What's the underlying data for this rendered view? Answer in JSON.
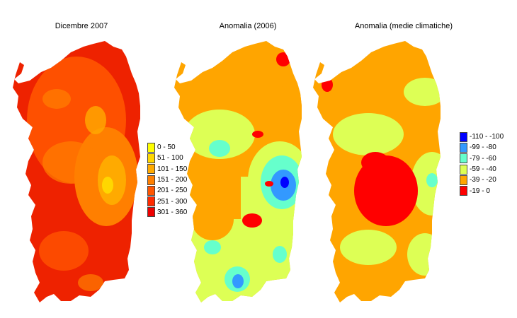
{
  "panels": [
    {
      "title": "Dicembre 2007"
    },
    {
      "title": "Anomalia (2006)"
    },
    {
      "title": "Anomalia (medie climatiche)"
    }
  ],
  "legend_precip": [
    {
      "label": "0 - 50",
      "color": "#ffff00"
    },
    {
      "label": "51 - 100",
      "color": "#ffd700"
    },
    {
      "label": "101 - 150",
      "color": "#ffaa00"
    },
    {
      "label": "151 - 200",
      "color": "#ff7f00"
    },
    {
      "label": "201 - 250",
      "color": "#ff5500"
    },
    {
      "label": "251 - 300",
      "color": "#ff2a00"
    },
    {
      "label": "301 - 360",
      "color": "#ee0000"
    }
  ],
  "legend_anomaly": [
    {
      "label": "-110 - -100",
      "color": "#0000ff"
    },
    {
      "label": "-99 - -80",
      "color": "#3399ff"
    },
    {
      "label": "-79 - -60",
      "color": "#66ffcc"
    },
    {
      "label": "-59 - -40",
      "color": "#ddff55"
    },
    {
      "label": "-39 - -20",
      "color": "#ffa500"
    },
    {
      "label": "-19 - 0",
      "color": "#ff0000"
    }
  ]
}
